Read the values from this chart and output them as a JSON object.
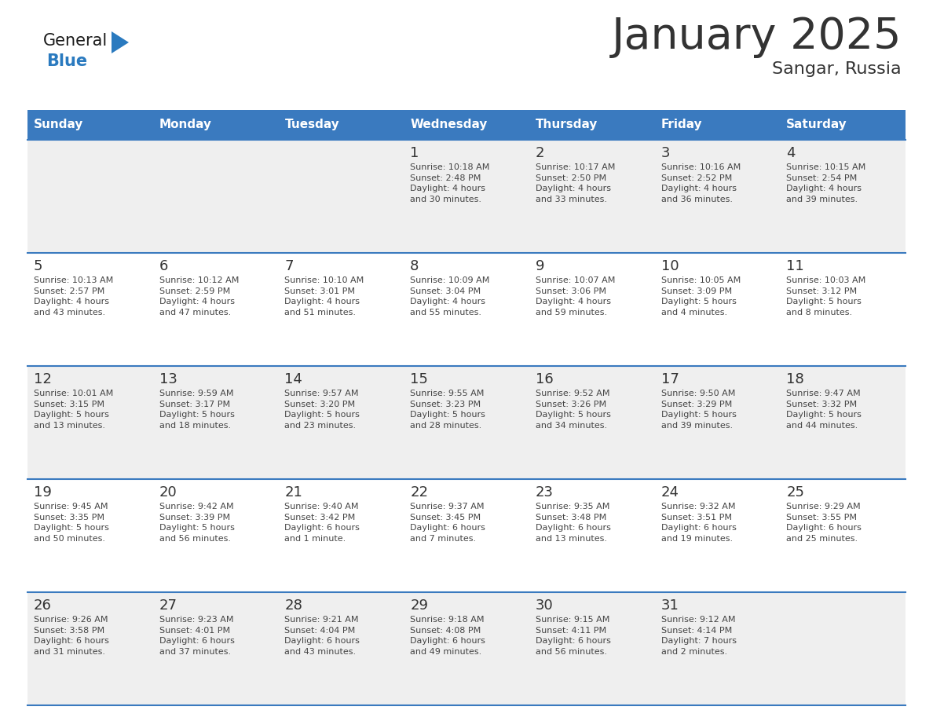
{
  "title": "January 2025",
  "subtitle": "Sangar, Russia",
  "header_color": "#3a7abf",
  "header_text_color": "#ffffff",
  "day_names": [
    "Sunday",
    "Monday",
    "Tuesday",
    "Wednesday",
    "Thursday",
    "Friday",
    "Saturday"
  ],
  "bg_color": "#ffffff",
  "cell_bg_even": "#efefef",
  "cell_bg_odd": "#ffffff",
  "row_line_color": "#3a7abf",
  "text_color": "#444444",
  "num_color": "#333333",
  "logo_general_color": "#1a1a1a",
  "logo_blue_color": "#2a7abf",
  "calendar": [
    [
      null,
      null,
      null,
      {
        "day": 1,
        "sunrise": "10:18 AM",
        "sunset": "2:48 PM",
        "daylight": "4 hours\nand 30 minutes."
      },
      {
        "day": 2,
        "sunrise": "10:17 AM",
        "sunset": "2:50 PM",
        "daylight": "4 hours\nand 33 minutes."
      },
      {
        "day": 3,
        "sunrise": "10:16 AM",
        "sunset": "2:52 PM",
        "daylight": "4 hours\nand 36 minutes."
      },
      {
        "day": 4,
        "sunrise": "10:15 AM",
        "sunset": "2:54 PM",
        "daylight": "4 hours\nand 39 minutes."
      }
    ],
    [
      {
        "day": 5,
        "sunrise": "10:13 AM",
        "sunset": "2:57 PM",
        "daylight": "4 hours\nand 43 minutes."
      },
      {
        "day": 6,
        "sunrise": "10:12 AM",
        "sunset": "2:59 PM",
        "daylight": "4 hours\nand 47 minutes."
      },
      {
        "day": 7,
        "sunrise": "10:10 AM",
        "sunset": "3:01 PM",
        "daylight": "4 hours\nand 51 minutes."
      },
      {
        "day": 8,
        "sunrise": "10:09 AM",
        "sunset": "3:04 PM",
        "daylight": "4 hours\nand 55 minutes."
      },
      {
        "day": 9,
        "sunrise": "10:07 AM",
        "sunset": "3:06 PM",
        "daylight": "4 hours\nand 59 minutes."
      },
      {
        "day": 10,
        "sunrise": "10:05 AM",
        "sunset": "3:09 PM",
        "daylight": "5 hours\nand 4 minutes."
      },
      {
        "day": 11,
        "sunrise": "10:03 AM",
        "sunset": "3:12 PM",
        "daylight": "5 hours\nand 8 minutes."
      }
    ],
    [
      {
        "day": 12,
        "sunrise": "10:01 AM",
        "sunset": "3:15 PM",
        "daylight": "5 hours\nand 13 minutes."
      },
      {
        "day": 13,
        "sunrise": "9:59 AM",
        "sunset": "3:17 PM",
        "daylight": "5 hours\nand 18 minutes."
      },
      {
        "day": 14,
        "sunrise": "9:57 AM",
        "sunset": "3:20 PM",
        "daylight": "5 hours\nand 23 minutes."
      },
      {
        "day": 15,
        "sunrise": "9:55 AM",
        "sunset": "3:23 PM",
        "daylight": "5 hours\nand 28 minutes."
      },
      {
        "day": 16,
        "sunrise": "9:52 AM",
        "sunset": "3:26 PM",
        "daylight": "5 hours\nand 34 minutes."
      },
      {
        "day": 17,
        "sunrise": "9:50 AM",
        "sunset": "3:29 PM",
        "daylight": "5 hours\nand 39 minutes."
      },
      {
        "day": 18,
        "sunrise": "9:47 AM",
        "sunset": "3:32 PM",
        "daylight": "5 hours\nand 44 minutes."
      }
    ],
    [
      {
        "day": 19,
        "sunrise": "9:45 AM",
        "sunset": "3:35 PM",
        "daylight": "5 hours\nand 50 minutes."
      },
      {
        "day": 20,
        "sunrise": "9:42 AM",
        "sunset": "3:39 PM",
        "daylight": "5 hours\nand 56 minutes."
      },
      {
        "day": 21,
        "sunrise": "9:40 AM",
        "sunset": "3:42 PM",
        "daylight": "6 hours\nand 1 minute."
      },
      {
        "day": 22,
        "sunrise": "9:37 AM",
        "sunset": "3:45 PM",
        "daylight": "6 hours\nand 7 minutes."
      },
      {
        "day": 23,
        "sunrise": "9:35 AM",
        "sunset": "3:48 PM",
        "daylight": "6 hours\nand 13 minutes."
      },
      {
        "day": 24,
        "sunrise": "9:32 AM",
        "sunset": "3:51 PM",
        "daylight": "6 hours\nand 19 minutes."
      },
      {
        "day": 25,
        "sunrise": "9:29 AM",
        "sunset": "3:55 PM",
        "daylight": "6 hours\nand 25 minutes."
      }
    ],
    [
      {
        "day": 26,
        "sunrise": "9:26 AM",
        "sunset": "3:58 PM",
        "daylight": "6 hours\nand 31 minutes."
      },
      {
        "day": 27,
        "sunrise": "9:23 AM",
        "sunset": "4:01 PM",
        "daylight": "6 hours\nand 37 minutes."
      },
      {
        "day": 28,
        "sunrise": "9:21 AM",
        "sunset": "4:04 PM",
        "daylight": "6 hours\nand 43 minutes."
      },
      {
        "day": 29,
        "sunrise": "9:18 AM",
        "sunset": "4:08 PM",
        "daylight": "6 hours\nand 49 minutes."
      },
      {
        "day": 30,
        "sunrise": "9:15 AM",
        "sunset": "4:11 PM",
        "daylight": "6 hours\nand 56 minutes."
      },
      {
        "day": 31,
        "sunrise": "9:12 AM",
        "sunset": "4:14 PM",
        "daylight": "7 hours\nand 2 minutes."
      },
      null
    ]
  ],
  "fig_width": 11.88,
  "fig_height": 9.18,
  "dpi": 100
}
